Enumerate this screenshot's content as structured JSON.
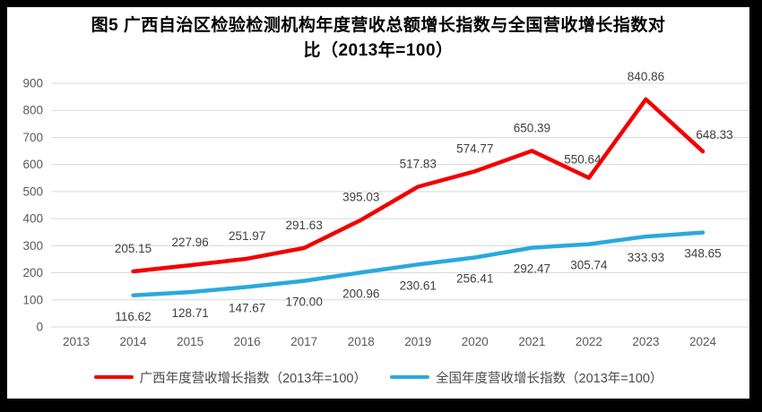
{
  "title": {
    "line1": "图5  广西自治区检验检测机构年度营收总额增长指数与全国营收增长指数对",
    "line2": "比（2013年=100）"
  },
  "chart_data": {
    "type": "line",
    "title": "图5 广西自治区检验检测机构年度营收总额增长指数与全国营收增长指数对比（2013年=100）",
    "xlabel": "",
    "ylabel": "",
    "categories": [
      "2013",
      "2014",
      "2015",
      "2016",
      "2017",
      "2018",
      "2019",
      "2020",
      "2021",
      "2022",
      "2023",
      "2024"
    ],
    "y_ticks": [
      0,
      100,
      200,
      300,
      400,
      500,
      600,
      700,
      800,
      900
    ],
    "ylim": [
      0,
      900
    ],
    "grid": true,
    "legend_position": "bottom",
    "colors": {
      "guangxi_red": "#f20000",
      "national_blue": "#2aa9dd",
      "gridline": "#d9d9d9",
      "tick_text": "#595959",
      "data_label_text": "#3f3f3f"
    },
    "series": [
      {
        "name": "广西年度营收增长指数（2013年=100）",
        "color": "#f20000",
        "values": [
          null,
          205.15,
          227.96,
          251.97,
          291.63,
          395.03,
          517.83,
          574.77,
          650.39,
          550.64,
          840.86,
          648.33
        ],
        "labels": [
          null,
          "205.15",
          "227.96",
          "251.97",
          "291.63",
          "395.03",
          "517.83",
          "574.77",
          "650.39",
          "550.64",
          "840.86",
          "648.33"
        ],
        "label_side": "above",
        "label_offsets": {
          "9": [
            -7,
            -16
          ],
          "11": [
            13,
            -14
          ]
        }
      },
      {
        "name": "全国年度营收增长指数（2013年=100）",
        "color": "#2aa9dd",
        "values": [
          null,
          116.62,
          128.71,
          147.67,
          170.0,
          200.96,
          230.61,
          256.41,
          292.47,
          305.74,
          333.93,
          348.65
        ],
        "labels": [
          null,
          "116.62",
          "128.71",
          "147.67",
          "170.00",
          "200.96",
          "230.61",
          "256.41",
          "292.47",
          "305.74",
          "333.93",
          "348.65"
        ],
        "label_side": "below",
        "label_offsets": {}
      }
    ]
  }
}
